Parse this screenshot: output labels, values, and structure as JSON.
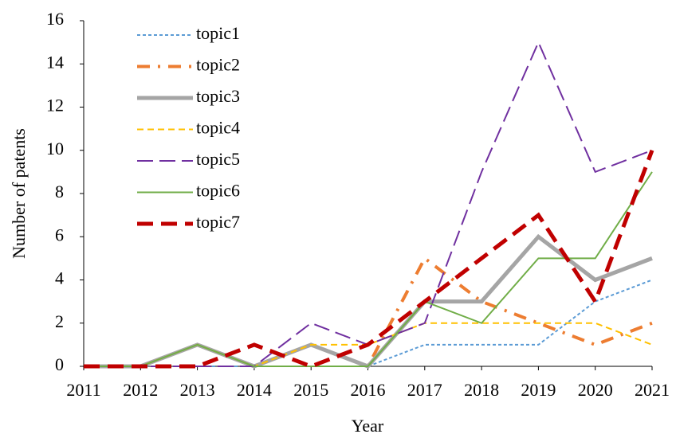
{
  "chart_data": {
    "type": "line",
    "xlabel": "Year",
    "ylabel": "Number of patents",
    "categories": [
      "2011",
      "2012",
      "2013",
      "2014",
      "2015",
      "2016",
      "2017",
      "2018",
      "2019",
      "2020",
      "2021"
    ],
    "ylim": [
      0,
      16
    ],
    "yticks": [
      0,
      2,
      4,
      6,
      8,
      10,
      12,
      14,
      16
    ],
    "legend": "upper-left",
    "series": [
      {
        "name": "topic1",
        "color": "#5b9bd5",
        "width": 2,
        "dash": "4,3",
        "values": [
          0,
          0,
          0,
          0,
          0,
          0,
          1,
          1,
          1,
          3,
          4
        ]
      },
      {
        "name": "topic2",
        "color": "#ed7d31",
        "width": 4,
        "dash": "16,10,3,10",
        "values": [
          0,
          0,
          1,
          0,
          1,
          0,
          5,
          3,
          2,
          1,
          2
        ]
      },
      {
        "name": "topic3",
        "color": "#a5a5a5",
        "width": 5,
        "dash": "none",
        "values": [
          0,
          0,
          1,
          0,
          1,
          0,
          3,
          3,
          6,
          4,
          5
        ]
      },
      {
        "name": "topic4",
        "color": "#ffc000",
        "width": 2,
        "dash": "8,5",
        "values": [
          0,
          0,
          1,
          0,
          1,
          1,
          2,
          2,
          2,
          2,
          1
        ]
      },
      {
        "name": "topic5",
        "color": "#7030a0",
        "width": 2,
        "dash": "20,8",
        "values": [
          0,
          0,
          0,
          0,
          2,
          1,
          2,
          9,
          15,
          9,
          10
        ]
      },
      {
        "name": "topic6",
        "color": "#70ad47",
        "width": 2,
        "dash": "none",
        "values": [
          0,
          0,
          1,
          0,
          0,
          0,
          3,
          2,
          5,
          5,
          9
        ]
      },
      {
        "name": "topic7",
        "color": "#c00000",
        "width": 5,
        "dash": "20,10",
        "values": [
          0,
          0,
          0,
          1,
          0,
          1,
          3,
          5,
          7,
          3,
          10
        ]
      }
    ]
  }
}
